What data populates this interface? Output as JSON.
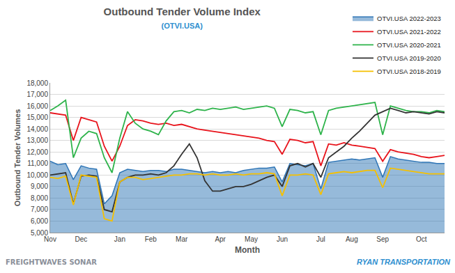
{
  "chart_data": {
    "type": "line",
    "title": "Outbound Tender Volume Index",
    "subtitle": "(OTVI.USA)",
    "x_label": "Month",
    "y_label": "Outbound Tender Volumes",
    "annotations": [
      "FREIGHTWAVES SONAR",
      "RYAN TRANSPORTATION"
    ],
    "categories": [
      "Nov",
      null,
      null,
      null,
      "Dec",
      null,
      null,
      null,
      null,
      "Jan",
      null,
      null,
      null,
      "Feb",
      null,
      null,
      null,
      "Mar",
      null,
      null,
      null,
      null,
      "Apr",
      null,
      null,
      null,
      "May",
      null,
      null,
      null,
      "Jun",
      null,
      null,
      null,
      null,
      "Jul",
      null,
      null,
      null,
      "Aug",
      null,
      null,
      null,
      "Sep",
      null,
      null,
      null,
      null,
      "Oct",
      null,
      null,
      null
    ],
    "series": [
      {
        "name": "OTVI.USA 2022-2023",
        "color": "#2e75b6",
        "type": "area",
        "values": [
          11200,
          10900,
          11000,
          9600,
          10800,
          10600,
          10500,
          7500,
          8200,
          10200,
          10500,
          10400,
          10300,
          10400,
          10400,
          10300,
          10500,
          10500,
          10400,
          10300,
          10200,
          10300,
          10200,
          10300,
          10200,
          10400,
          10500,
          10600,
          10600,
          10700,
          9400,
          11000,
          10900,
          10800,
          11000,
          8800,
          11100,
          11200,
          11300,
          11400,
          11300,
          11400,
          11500,
          9800,
          11600,
          11400,
          11300,
          11200,
          11100,
          11100,
          11000,
          11000
        ]
      },
      {
        "name": "OTVI.USA 2021-2022",
        "color": "#e8131b",
        "values": [
          15400,
          15300,
          15200,
          13000,
          15000,
          14800,
          14600,
          12500,
          11200,
          12500,
          14300,
          14800,
          14700,
          14500,
          14400,
          14500,
          14300,
          14400,
          14200,
          14000,
          13900,
          13800,
          13700,
          13600,
          13500,
          13400,
          13300,
          13200,
          13000,
          12900,
          11800,
          13100,
          13000,
          12800,
          12900,
          10800,
          12700,
          12600,
          12800,
          12600,
          12500,
          12400,
          12300,
          11200,
          12200,
          12000,
          11900,
          11800,
          11600,
          11500,
          11600,
          11700
        ]
      },
      {
        "name": "OTVI.USA 2020-2021",
        "color": "#2db34a",
        "values": [
          15600,
          16000,
          16500,
          11500,
          13200,
          13800,
          13600,
          11500,
          10200,
          13200,
          15500,
          14500,
          14000,
          13800,
          13500,
          14700,
          15500,
          15600,
          15400,
          15700,
          15600,
          15800,
          15700,
          15800,
          15900,
          15700,
          15800,
          15900,
          16000,
          15800,
          14200,
          15700,
          15600,
          15400,
          15500,
          13500,
          15600,
          15800,
          15900,
          16000,
          16100,
          16200,
          16300,
          13500,
          16000,
          15800,
          15600,
          15500,
          15500,
          15400,
          15600,
          15500
        ]
      },
      {
        "name": "OTVI.USA 2019-2020",
        "color": "#333333",
        "values": [
          10000,
          10100,
          10200,
          7500,
          9900,
          10000,
          9900,
          7000,
          6800,
          9400,
          9800,
          10000,
          10000,
          10100,
          10000,
          10200,
          10800,
          11800,
          12700,
          11500,
          9500,
          8600,
          8600,
          8800,
          9000,
          9000,
          9200,
          9500,
          9800,
          10000,
          9000,
          10800,
          11000,
          10700,
          11000,
          9800,
          11500,
          12000,
          12500,
          13200,
          13800,
          14500,
          15200,
          15500,
          15800,
          15600,
          15400,
          15500,
          15400,
          15300,
          15500,
          15400
        ]
      },
      {
        "name": "OTVI.USA 2018-2019",
        "color": "#f5c000",
        "values": [
          9800,
          9700,
          9900,
          7400,
          10000,
          9900,
          9800,
          6200,
          6000,
          9400,
          9800,
          9800,
          9600,
          9700,
          9800,
          9900,
          10000,
          10000,
          10100,
          10100,
          10000,
          10100,
          10000,
          10000,
          10100,
          10000,
          10100,
          10100,
          10200,
          10100,
          8200,
          10000,
          10000,
          10100,
          10000,
          8300,
          10100,
          10200,
          10300,
          10200,
          10300,
          10400,
          10400,
          8900,
          10600,
          10500,
          10400,
          10300,
          10200,
          10100,
          10100,
          10100
        ]
      }
    ],
    "ylim": [
      5000,
      18000
    ],
    "yticks": [
      {
        "value": 5000,
        "label": "5,000"
      },
      {
        "value": 6000,
        "label": "6,000"
      },
      {
        "value": 7000,
        "label": "7,000"
      },
      {
        "value": 8000,
        "label": "8,000"
      },
      {
        "value": 9000,
        "label": "9,000"
      },
      {
        "value": 10000,
        "label": "10,000"
      },
      {
        "value": 11000,
        "label": "11,000"
      },
      {
        "value": 12000,
        "label": "12,000"
      },
      {
        "value": 13000,
        "label": "13,000"
      },
      {
        "value": 14000,
        "label": "14,000"
      },
      {
        "value": 15000,
        "label": "15,000"
      },
      {
        "value": 16000,
        "label": "16,000"
      },
      {
        "value": 17000,
        "label": "17,000"
      },
      {
        "value": 18000,
        "label": "18,000"
      }
    ],
    "grid": true,
    "legend": "top right"
  }
}
